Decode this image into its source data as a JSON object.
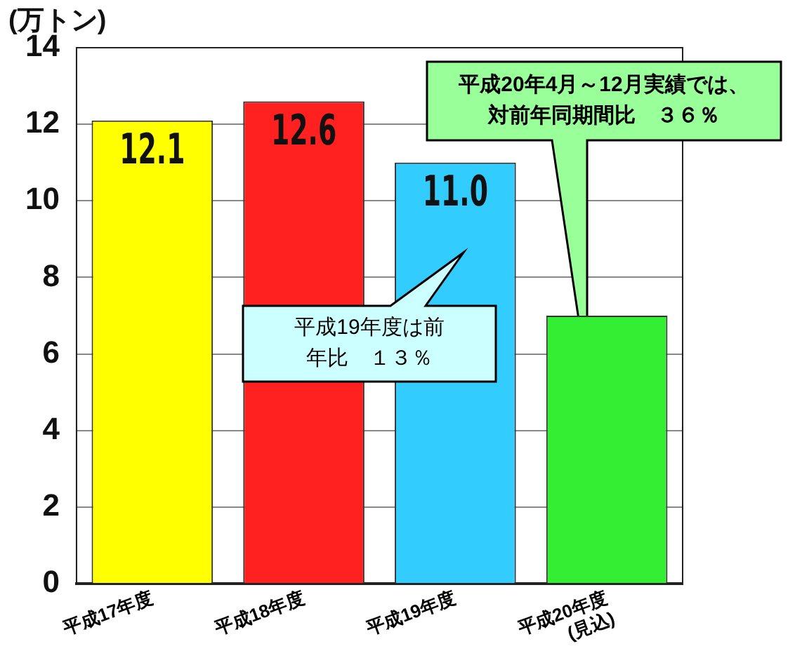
{
  "chart_data": {
    "type": "bar",
    "ylabel": "(万トン)",
    "categories": [
      "平成17年度",
      "平成18年度",
      "平成19年度",
      "平成20年度\n(見込)"
    ],
    "values": [
      12.1,
      12.6,
      11.0,
      7.0
    ],
    "colors": [
      "#ffff00",
      "#ff2020",
      "#33ccff",
      "#33ee33"
    ],
    "value_labels": [
      "12.1",
      "12.6",
      "11.0",
      null
    ],
    "ylim": [
      0,
      14
    ],
    "yticks": [
      0,
      2,
      4,
      6,
      8,
      10,
      12,
      14
    ],
    "grid": "y",
    "legend": false,
    "annotations": [
      "平成19年度は前年比　１３％",
      "平成20年4月～12月実績では、対前年同期間比　３６％"
    ]
  }
}
